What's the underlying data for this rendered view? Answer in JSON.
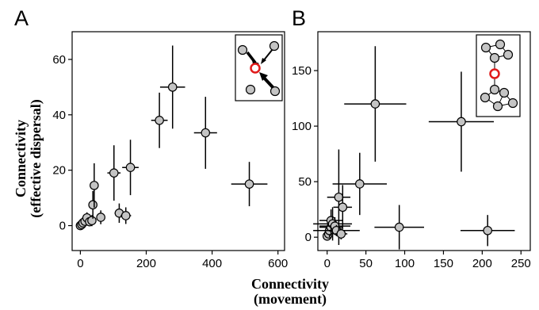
{
  "figure": {
    "ylabel_line1": "Connectivity",
    "ylabel_line2": "(effective dispersal)",
    "xlabel_line1": "Connectivity",
    "xlabel_line2": "(movement)"
  },
  "chart_data": [
    {
      "panel": "A",
      "type": "scatter",
      "xlim": [
        -25,
        620
      ],
      "ylim": [
        -9,
        70
      ],
      "xticks": [
        0,
        200,
        400,
        600
      ],
      "yticks": [
        0,
        20,
        40,
        60
      ],
      "grid": false,
      "points": [
        {
          "x": 0,
          "y": 0,
          "xerr": 3,
          "yerr": 0.6
        },
        {
          "x": 4,
          "y": 0.4,
          "xerr": 4,
          "yerr": 0.8
        },
        {
          "x": 8,
          "y": 1,
          "xerr": 6,
          "yerr": 1
        },
        {
          "x": 14,
          "y": 1.6,
          "xerr": 8,
          "yerr": 1.5
        },
        {
          "x": 20,
          "y": 2.8,
          "xerr": 10,
          "yerr": 2
        },
        {
          "x": 28,
          "y": 1.4,
          "xerr": 10,
          "yerr": 1.5
        },
        {
          "x": 35,
          "y": 1.8,
          "xerr": 12,
          "yerr": 2
        },
        {
          "x": 38,
          "y": 7.5,
          "xerr": 8,
          "yerr": 5
        },
        {
          "x": 42,
          "y": 14.5,
          "xerr": 8,
          "yerr": 8
        },
        {
          "x": 62,
          "y": 3,
          "xerr": 12,
          "yerr": 2.5
        },
        {
          "x": 102,
          "y": 19,
          "xerr": 20,
          "yerr": 10
        },
        {
          "x": 118,
          "y": 4.5,
          "xerr": 14,
          "yerr": 3.5
        },
        {
          "x": 138,
          "y": 3.6,
          "xerr": 16,
          "yerr": 3
        },
        {
          "x": 152,
          "y": 21,
          "xerr": 25,
          "yerr": 10
        },
        {
          "x": 240,
          "y": 38,
          "xerr": 25,
          "yerr": 10
        },
        {
          "x": 280,
          "y": 50,
          "xerr": 38,
          "yerr": 15
        },
        {
          "x": 380,
          "y": 33.5,
          "xerr": 35,
          "yerr": 13
        },
        {
          "x": 513,
          "y": 15,
          "xerr": 55,
          "yerr": 8
        }
      ],
      "inset": {
        "type": "movement network",
        "focal_color": "#e01b1b"
      }
    },
    {
      "panel": "B",
      "type": "scatter",
      "xlim": [
        -12,
        262
      ],
      "ylim": [
        -12,
        185
      ],
      "xticks": [
        0,
        50,
        100,
        150,
        200,
        250
      ],
      "yticks": [
        0,
        50,
        100,
        150
      ],
      "grid": false,
      "points": [
        {
          "x": 0,
          "y": 1,
          "xerr": 2,
          "yerr": 3
        },
        {
          "x": 2,
          "y": 3,
          "xerr": 3,
          "yerr": 4
        },
        {
          "x": 3,
          "y": 6,
          "xerr": 10,
          "yerr": 6
        },
        {
          "x": 5,
          "y": 9,
          "xerr": 15,
          "yerr": 8
        },
        {
          "x": 5,
          "y": 15,
          "xerr": 15,
          "yerr": 10
        },
        {
          "x": 7,
          "y": 12,
          "xerr": 25,
          "yerr": 15
        },
        {
          "x": 10,
          "y": 10,
          "xerr": 20,
          "yerr": 8
        },
        {
          "x": 12,
          "y": 6,
          "xerr": 30,
          "yerr": 5
        },
        {
          "x": 15,
          "y": 36,
          "xerr": 15,
          "yerr": 43
        },
        {
          "x": 18,
          "y": 3,
          "xerr": 8,
          "yerr": 5
        },
        {
          "x": 20,
          "y": 27,
          "xerr": 12,
          "yerr": 20
        },
        {
          "x": 42,
          "y": 48,
          "xerr": 35,
          "yerr": 28
        },
        {
          "x": 62,
          "y": 120,
          "xerr": 40,
          "yerr": 52
        },
        {
          "x": 93,
          "y": 9,
          "xerr": 32,
          "yerr": 20
        },
        {
          "x": 173,
          "y": 104,
          "xerr": 42,
          "yerr": 45
        },
        {
          "x": 207,
          "y": 6,
          "xerr": 35,
          "yerr": 14
        }
      ],
      "inset": {
        "type": "effective dispersal network",
        "focal_color": "#e01b1b"
      }
    }
  ]
}
